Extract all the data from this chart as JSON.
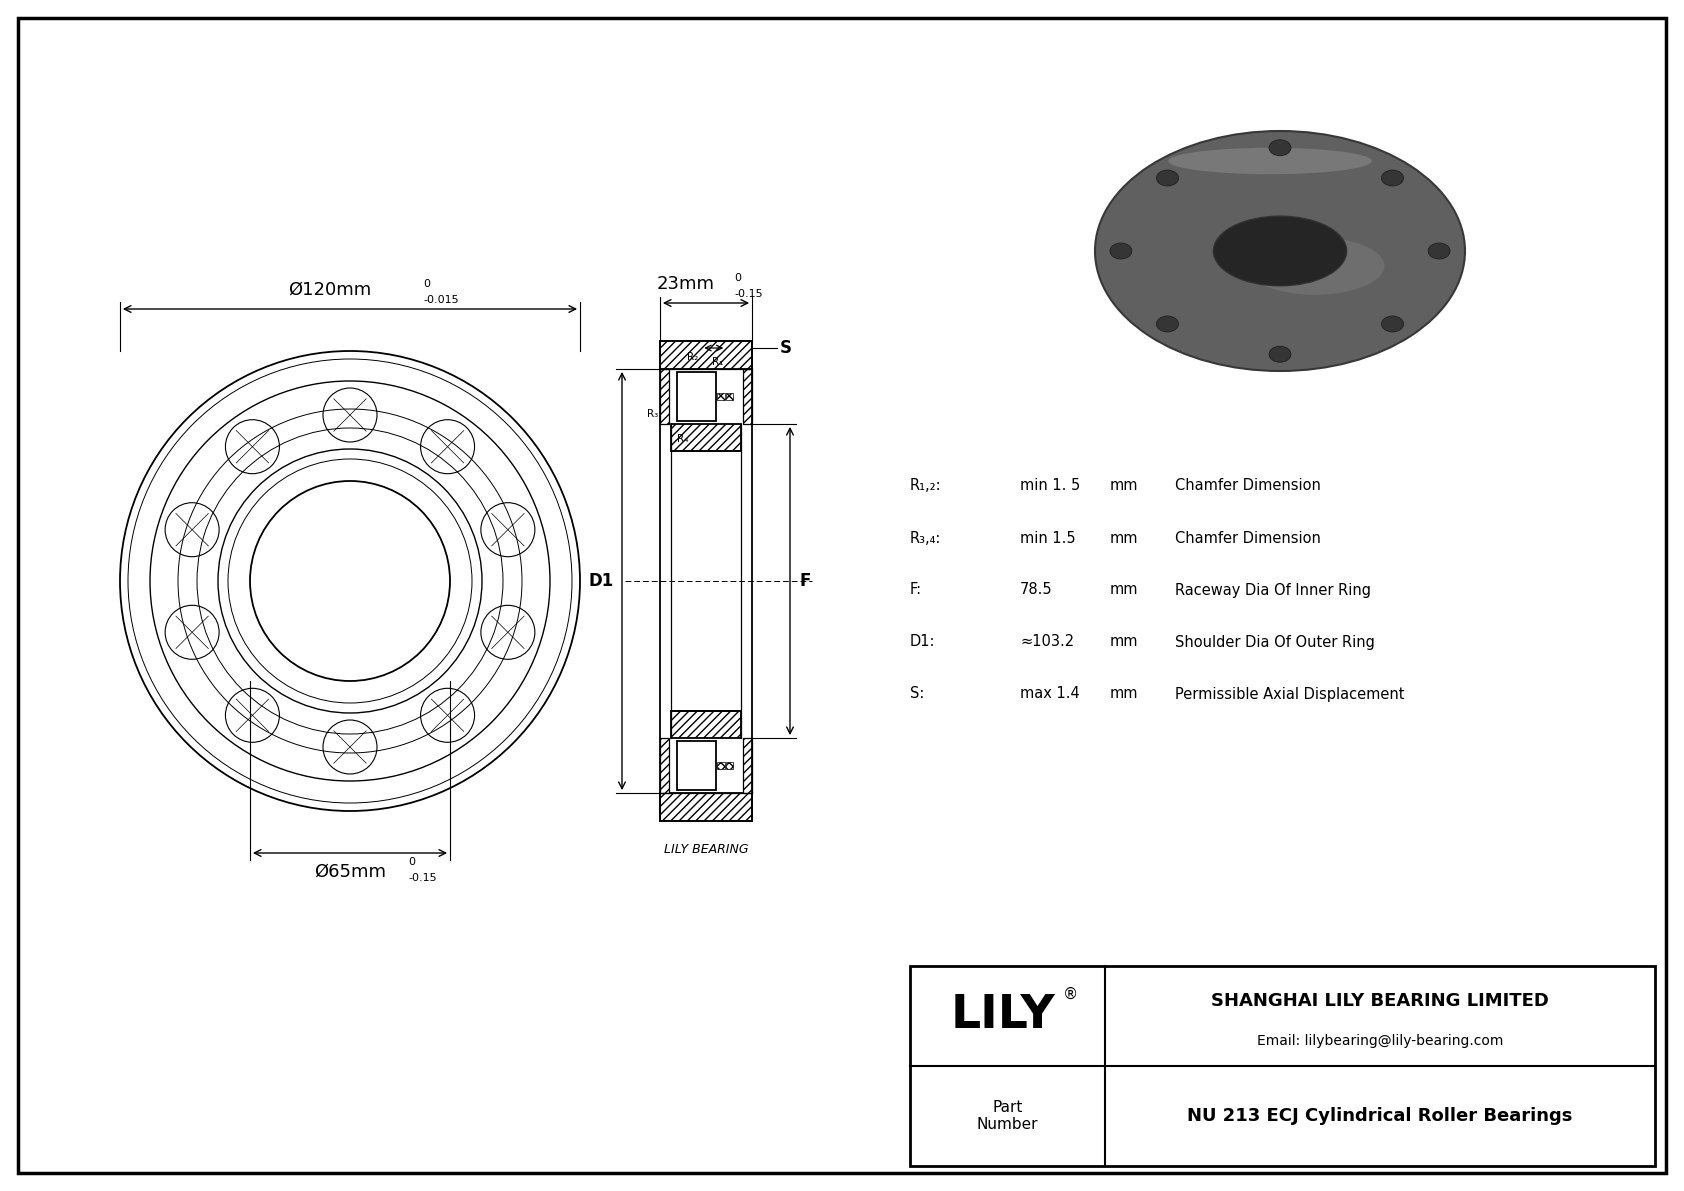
{
  "bg_color": "#ffffff",
  "border_color": "#000000",
  "title": "NU 213 ECJ Cylindrical Roller Bearings",
  "company": "SHANGHAI LILY BEARING LIMITED",
  "email": "Email: lilybearing@lily-bearing.com",
  "part_label": "Part\nNumber",
  "lily_text": "LILY",
  "watermark_text": "LILY BEARING",
  "outer_dia_label": "Ø120mm",
  "outer_dia_tol": "-0.015",
  "outer_dia_tol_upper": "0",
  "inner_dia_label": "Ø65mm",
  "inner_dia_tol": "-0.15",
  "inner_dia_tol_upper": "0",
  "width_label": "23mm",
  "width_tol": "-0.15",
  "width_tol_upper": "0",
  "S_label": "S",
  "D1_label": "D1",
  "F_label": "F",
  "R12_label": "R₁,₂:",
  "R12_val": "min 1. 5",
  "R12_unit": "mm",
  "R12_desc": "Chamfer Dimension",
  "R34_label": "R₃,₄:",
  "R34_val": "min 1.5",
  "R34_unit": "mm",
  "R34_desc": "Chamfer Dimension",
  "F_param_label": "F:",
  "F_param_val": "78.5",
  "F_param_unit": "mm",
  "F_param_desc": "Raceway Dia Of Inner Ring",
  "D1_param_label": "D1:",
  "D1_param_val": "≈103.2",
  "D1_param_unit": "mm",
  "D1_param_desc": "Shoulder Dia Of Outer Ring",
  "S_param_label": "S:",
  "S_param_val": "max 1.4",
  "S_param_unit": "mm",
  "S_param_desc": "Permissible Axial Displacement"
}
